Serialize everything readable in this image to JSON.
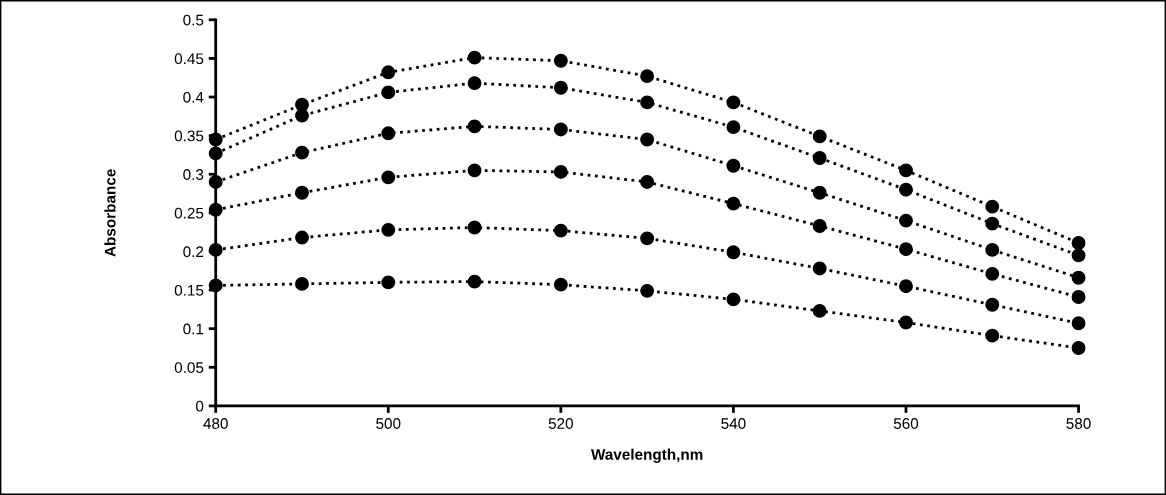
{
  "chart_data": {
    "type": "line",
    "xlabel": "Wavelength,nm",
    "ylabel": "Absorbance",
    "x": [
      480,
      490,
      500,
      510,
      520,
      530,
      540,
      550,
      560,
      570,
      580
    ],
    "series": [
      {
        "color": "#000000",
        "values": [
          0.345,
          0.39,
          0.432,
          0.451,
          0.447,
          0.427,
          0.393,
          0.349,
          0.305,
          0.258,
          0.211
        ]
      },
      {
        "color": "#000000",
        "values": [
          0.327,
          0.376,
          0.406,
          0.418,
          0.412,
          0.393,
          0.361,
          0.321,
          0.28,
          0.236,
          0.195
        ]
      },
      {
        "color": "#000000",
        "values": [
          0.29,
          0.328,
          0.353,
          0.362,
          0.358,
          0.345,
          0.311,
          0.276,
          0.24,
          0.202,
          0.166
        ]
      },
      {
        "color": "#000000",
        "values": [
          0.254,
          0.276,
          0.296,
          0.305,
          0.303,
          0.29,
          0.262,
          0.233,
          0.203,
          0.171,
          0.141
        ]
      },
      {
        "color": "#000000",
        "values": [
          0.202,
          0.218,
          0.228,
          0.231,
          0.227,
          0.217,
          0.199,
          0.178,
          0.155,
          0.131,
          0.107
        ]
      },
      {
        "color": "#000000",
        "values": [
          0.156,
          0.158,
          0.16,
          0.161,
          0.157,
          0.149,
          0.138,
          0.123,
          0.108,
          0.091,
          0.075
        ]
      }
    ],
    "xlim": [
      480,
      580
    ],
    "xticks": [
      480,
      500,
      520,
      540,
      560,
      580
    ],
    "ylim": [
      0,
      0.5
    ],
    "yticks": [
      0,
      0.05,
      0.1,
      0.15,
      0.2,
      0.25,
      0.3,
      0.35,
      0.4,
      0.45,
      0.5
    ],
    "grid": false,
    "legend": false,
    "marker": "circle",
    "line_style": "dotted"
  }
}
